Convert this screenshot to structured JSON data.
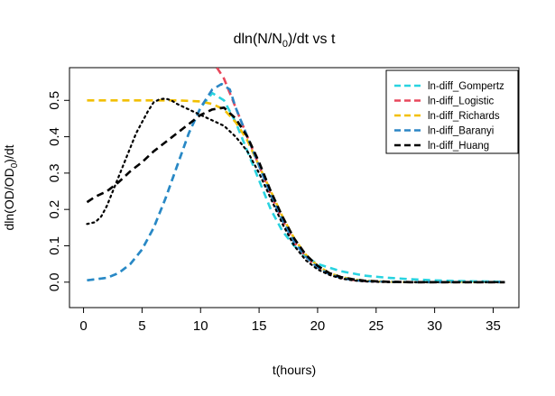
{
  "chart_data": {
    "type": "line",
    "title": "dln(N/N0)/dt vs t",
    "title_parts": {
      "main": "dln(N/N",
      "sub": "0",
      "tail": ")/dt vs t"
    },
    "xlabel": "t(hours)",
    "ylabel": "dln(OD/OD0)/dt",
    "ylabel_parts": {
      "main": "dln(OD/OD",
      "sub": "0",
      "tail": ")/dt"
    },
    "xlim": [
      -1.2,
      37.2
    ],
    "ylim": [
      -0.07,
      0.59
    ],
    "x_ticks": [
      0,
      5,
      10,
      15,
      20,
      25,
      30,
      35
    ],
    "y_ticks": [
      0.0,
      0.1,
      0.2,
      0.3,
      0.4,
      0.5
    ],
    "y_tick_labels": [
      "0.0",
      "0.1",
      "0.2",
      "0.3",
      "0.4",
      "0.5"
    ],
    "grid": false,
    "legend_position": "top-right",
    "series": [
      {
        "name": "ln-diff_Gompertz",
        "color": "#29d3e0",
        "style": "dashed",
        "x": [
          0.3,
          2,
          3,
          4,
          5,
          6,
          7,
          8,
          9,
          10,
          11,
          12,
          13,
          14,
          15,
          16,
          17,
          18,
          19,
          20,
          21,
          22,
          24,
          26,
          28,
          30,
          32,
          34,
          36
        ],
        "y": [
          0.005,
          0.012,
          0.025,
          0.05,
          0.09,
          0.15,
          0.23,
          0.32,
          0.41,
          0.48,
          0.52,
          0.5,
          0.44,
          0.36,
          0.28,
          0.2,
          0.14,
          0.1,
          0.07,
          0.05,
          0.04,
          0.03,
          0.018,
          0.012,
          0.008,
          0.005,
          0.003,
          0.002,
          0.001
        ]
      },
      {
        "name": "ln-diff_Logistic",
        "color": "#e8475b",
        "style": "dashed",
        "x": [
          11.4,
          12,
          13,
          14,
          15,
          16,
          17,
          18,
          19,
          20,
          21,
          22,
          23,
          24,
          26,
          28,
          30,
          32,
          34,
          36
        ],
        "y": [
          0.59,
          0.56,
          0.48,
          0.4,
          0.32,
          0.24,
          0.17,
          0.11,
          0.07,
          0.04,
          0.022,
          0.012,
          0.006,
          0.003,
          0.001,
          0.0,
          0.0,
          0.0,
          0.0,
          0.0
        ]
      },
      {
        "name": "ln-diff_Richards",
        "color": "#f2bf00",
        "style": "dashed",
        "x": [
          0.3,
          2,
          4,
          6,
          8,
          10,
          11,
          12,
          13,
          14,
          15,
          16,
          17,
          18,
          19,
          20,
          21,
          22,
          23,
          24,
          26,
          28,
          30,
          32,
          34,
          36
        ],
        "y": [
          0.5,
          0.5,
          0.5,
          0.5,
          0.5,
          0.497,
          0.49,
          0.475,
          0.44,
          0.39,
          0.32,
          0.25,
          0.18,
          0.12,
          0.075,
          0.045,
          0.025,
          0.014,
          0.008,
          0.004,
          0.001,
          0.0,
          0.0,
          0.0,
          0.0,
          0.0
        ]
      },
      {
        "name": "ln-diff_Baranyi",
        "color": "#2b86c5",
        "style": "dashed",
        "x": [
          0.3,
          2,
          3,
          4,
          5,
          6,
          7,
          8,
          9,
          10,
          11,
          11.8,
          12.5,
          13,
          14,
          15,
          16,
          17,
          18,
          19,
          20,
          21,
          22,
          23,
          24,
          26,
          28,
          30,
          32,
          34,
          36
        ],
        "y": [
          0.005,
          0.012,
          0.025,
          0.05,
          0.09,
          0.15,
          0.23,
          0.32,
          0.41,
          0.48,
          0.53,
          0.545,
          0.53,
          0.48,
          0.4,
          0.32,
          0.24,
          0.17,
          0.11,
          0.07,
          0.04,
          0.022,
          0.012,
          0.006,
          0.003,
          0.001,
          0.0,
          0.0,
          0.0,
          0.0,
          0.0
        ]
      },
      {
        "name": "ln-diff_Huang",
        "color": "#000000",
        "style": "dashed",
        "x": [
          0.3,
          1,
          2,
          3,
          4,
          5,
          6,
          7,
          8,
          9,
          10,
          11,
          12,
          13,
          14,
          15,
          16,
          17,
          18,
          19,
          20,
          21,
          22,
          23,
          24,
          26,
          28,
          30,
          32,
          34,
          36
        ],
        "y": [
          0.22,
          0.235,
          0.25,
          0.275,
          0.305,
          0.33,
          0.36,
          0.385,
          0.41,
          0.435,
          0.46,
          0.475,
          0.48,
          0.45,
          0.4,
          0.33,
          0.25,
          0.18,
          0.12,
          0.075,
          0.045,
          0.025,
          0.014,
          0.008,
          0.004,
          0.001,
          0.0,
          0.0,
          0.0,
          0.0,
          0.0
        ]
      },
      {
        "name": "",
        "color": "#000000",
        "style": "dotted",
        "x": [
          0.3,
          1,
          1.5,
          2,
          2.5,
          3,
          3.5,
          4,
          4.5,
          5,
          5.5,
          6,
          6.5,
          7,
          7.5,
          8,
          9,
          10,
          11,
          12,
          12.5,
          13,
          14,
          15,
          16,
          17,
          18,
          19,
          20,
          21,
          22,
          23,
          24,
          26,
          28,
          30,
          32,
          34,
          36
        ],
        "y": [
          0.16,
          0.165,
          0.18,
          0.21,
          0.25,
          0.29,
          0.33,
          0.37,
          0.41,
          0.44,
          0.47,
          0.495,
          0.503,
          0.505,
          0.5,
          0.49,
          0.475,
          0.46,
          0.445,
          0.43,
          0.415,
          0.4,
          0.36,
          0.3,
          0.23,
          0.16,
          0.1,
          0.06,
          0.035,
          0.02,
          0.01,
          0.005,
          0.002,
          0.0,
          0.0,
          0.0,
          0.0,
          0.0,
          0.0
        ]
      }
    ]
  }
}
